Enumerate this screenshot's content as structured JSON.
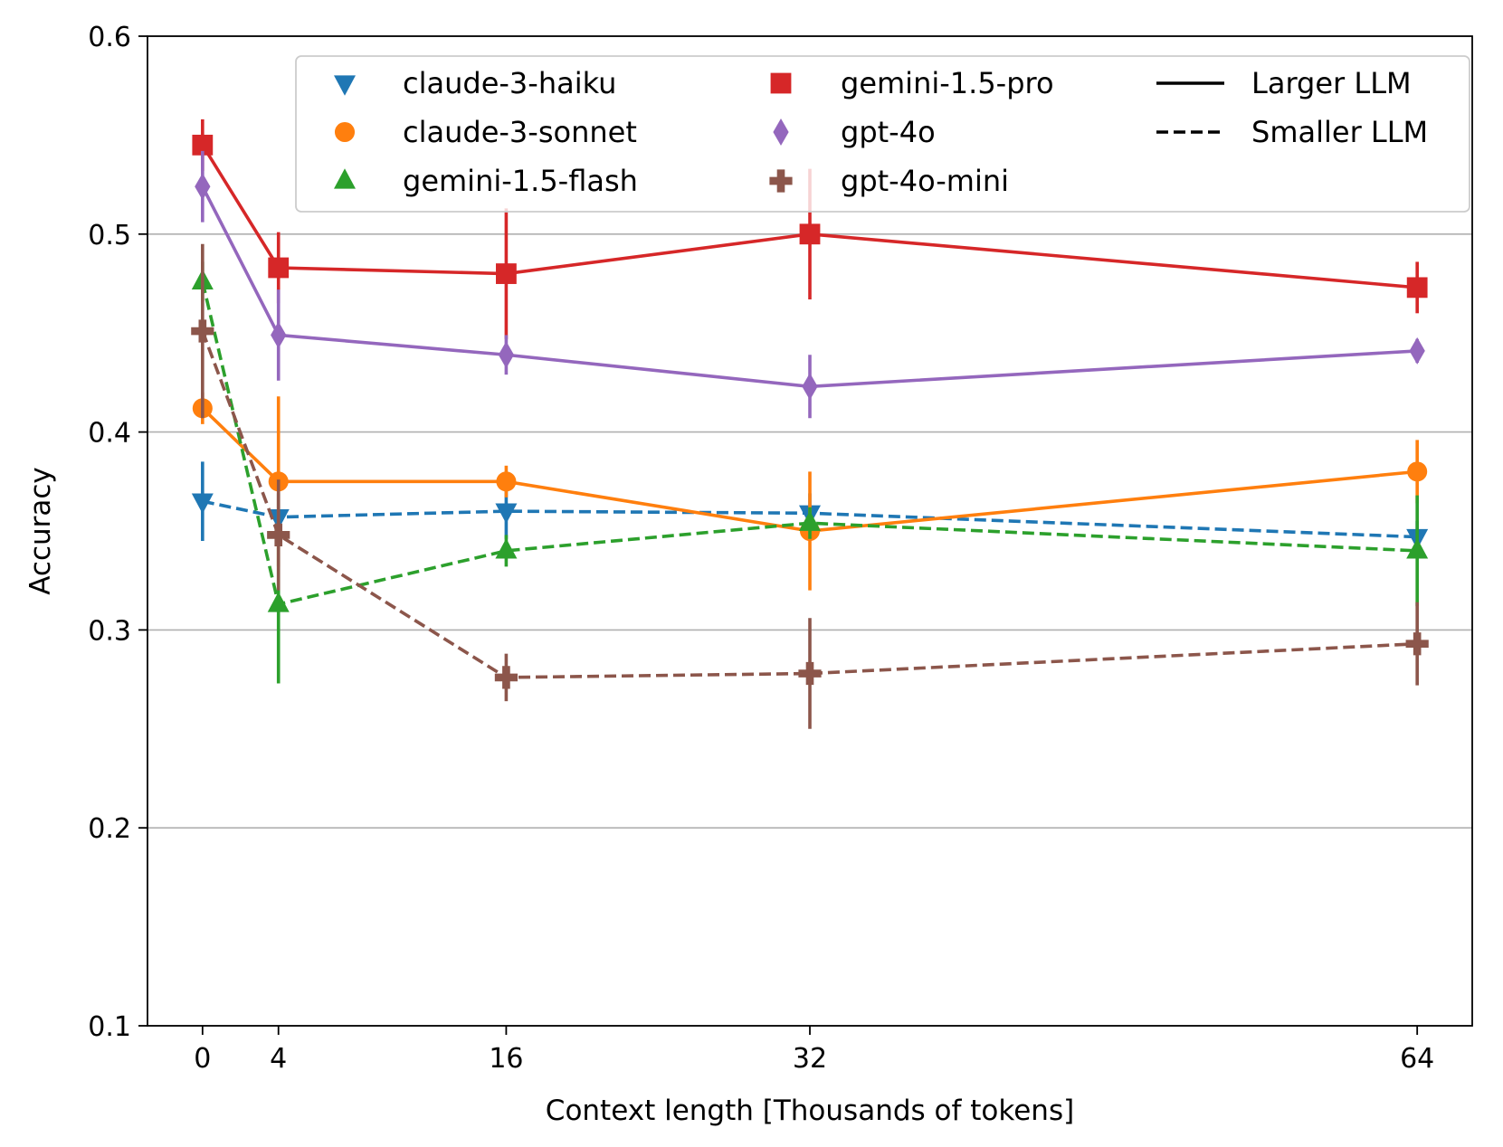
{
  "chart_data": {
    "type": "line",
    "title": "",
    "xlabel": "Context length [Thousands of tokens]",
    "ylabel": "Accuracy",
    "x": [
      0,
      4,
      16,
      32,
      64
    ],
    "xticks": [
      "0",
      "4",
      "16",
      "32",
      "64"
    ],
    "xlim": [
      -2.9,
      66.9
    ],
    "ylim": [
      0.1,
      0.6
    ],
    "yticks": [
      "0.1",
      "0.2",
      "0.3",
      "0.4",
      "0.5",
      "0.6"
    ],
    "grid": "horizontal",
    "legend_position": "top-right",
    "series": [
      {
        "name": "claude-3-haiku",
        "color": "#1f77b4",
        "marker": "triangle-down",
        "linestyle": "dashed",
        "values": [
          0.365,
          0.357,
          0.36,
          0.359,
          0.347
        ],
        "errors": [
          0.02,
          0.012,
          0.014,
          0.01,
          0.008
        ]
      },
      {
        "name": "claude-3-sonnet",
        "color": "#ff7f0e",
        "marker": "circle",
        "linestyle": "solid",
        "values": [
          0.412,
          0.375,
          0.375,
          0.35,
          0.38
        ],
        "errors": [
          0.008,
          0.043,
          0.008,
          0.03,
          0.016
        ]
      },
      {
        "name": "gemini-1.5-flash",
        "color": "#2ca02c",
        "marker": "triangle-up",
        "linestyle": "dashed",
        "values": [
          0.476,
          0.313,
          0.34,
          0.354,
          0.34
        ],
        "errors": [
          0.01,
          0.04,
          0.008,
          0.008,
          0.028
        ]
      },
      {
        "name": "gemini-1.5-pro",
        "color": "#d62728",
        "marker": "square",
        "linestyle": "solid",
        "values": [
          0.545,
          0.483,
          0.48,
          0.5,
          0.473
        ],
        "errors": [
          0.013,
          0.018,
          0.033,
          0.033,
          0.013
        ]
      },
      {
        "name": "gpt-4o",
        "color": "#9467bd",
        "marker": "diamond",
        "linestyle": "solid",
        "values": [
          0.524,
          0.449,
          0.439,
          0.423,
          0.441
        ],
        "errors": [
          0.018,
          0.023,
          0.01,
          0.016,
          0.006
        ]
      },
      {
        "name": "gpt-4o-mini",
        "color": "#8c564b",
        "marker": "plus-filled",
        "linestyle": "dashed",
        "values": [
          0.451,
          0.348,
          0.276,
          0.278,
          0.293
        ],
        "errors": [
          0.044,
          0.028,
          0.012,
          0.028,
          0.021
        ]
      }
    ],
    "style_legend": [
      {
        "label": "Larger LLM",
        "linestyle": "solid"
      },
      {
        "label": "Smaller LLM",
        "linestyle": "dashed"
      }
    ]
  }
}
